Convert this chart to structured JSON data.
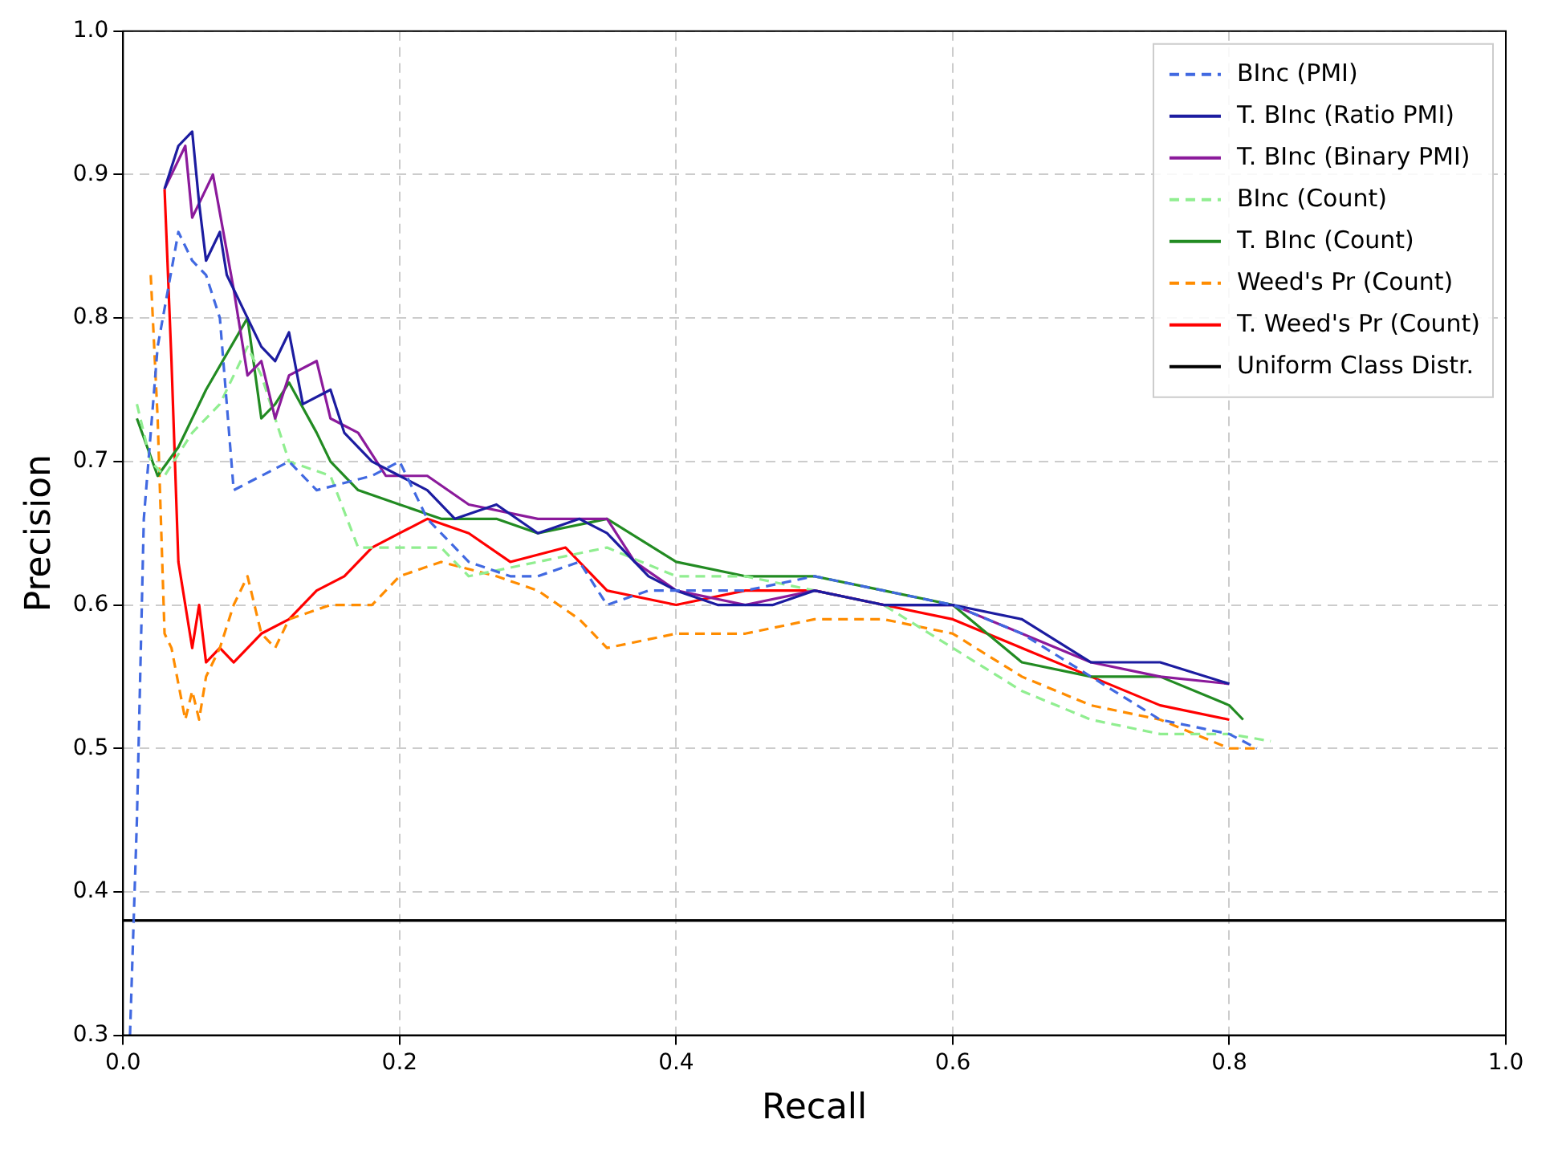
{
  "chart_data": {
    "type": "line",
    "xlabel": "Recall",
    "ylabel": "Precision",
    "xlim": [
      0,
      1
    ],
    "ylim": [
      0.3,
      1
    ],
    "xticks": [
      {
        "value": 0,
        "label": "0.0"
      },
      0.2,
      0.4,
      0.6,
      0.8,
      {
        "value": 1,
        "label": "1.0"
      }
    ],
    "yticks": [
      0.3,
      0.4,
      0.5,
      0.6,
      0.7,
      0.8,
      0.9,
      {
        "value": 1,
        "label": "1.0"
      }
    ],
    "grid": true,
    "legend": "top right",
    "marker": "none",
    "series": [
      {
        "name": "BInc (PMI)",
        "color": "#4169e1",
        "line_style": "dashed",
        "x": [
          0.005,
          0.01,
          0.015,
          0.025,
          0.04,
          0.05,
          0.06,
          0.07,
          0.08,
          0.1,
          0.12,
          0.14,
          0.18,
          0.2,
          0.22,
          0.25,
          0.28,
          0.3,
          0.33,
          0.35,
          0.38,
          0.4,
          0.45,
          0.5,
          0.55,
          0.6,
          0.65,
          0.7,
          0.75,
          0.8,
          0.82
        ],
        "values": [
          0.3,
          0.45,
          0.66,
          0.78,
          0.86,
          0.84,
          0.83,
          0.8,
          0.68,
          0.69,
          0.7,
          0.68,
          0.69,
          0.7,
          0.66,
          0.63,
          0.62,
          0.62,
          0.63,
          0.6,
          0.61,
          0.61,
          0.61,
          0.62,
          0.61,
          0.6,
          0.58,
          0.55,
          0.52,
          0.51,
          0.5
        ]
      },
      {
        "name": "T. BInc (Ratio PMI)",
        "color": "#1c1ca0",
        "line_style": "solid",
        "x": [
          0.03,
          0.04,
          0.05,
          0.055,
          0.06,
          0.07,
          0.075,
          0.09,
          0.1,
          0.11,
          0.12,
          0.13,
          0.15,
          0.16,
          0.18,
          0.2,
          0.22,
          0.24,
          0.27,
          0.3,
          0.33,
          0.35,
          0.38,
          0.4,
          0.43,
          0.47,
          0.5,
          0.55,
          0.6,
          0.65,
          0.7,
          0.75,
          0.8
        ],
        "values": [
          0.89,
          0.92,
          0.93,
          0.88,
          0.84,
          0.86,
          0.83,
          0.8,
          0.78,
          0.77,
          0.79,
          0.74,
          0.75,
          0.72,
          0.7,
          0.69,
          0.68,
          0.66,
          0.67,
          0.65,
          0.66,
          0.65,
          0.62,
          0.61,
          0.6,
          0.6,
          0.61,
          0.6,
          0.6,
          0.59,
          0.56,
          0.56,
          0.545
        ]
      },
      {
        "name": "T. BInc (Binary PMI)",
        "color": "#8b1a9b",
        "line_style": "solid",
        "x": [
          0.03,
          0.045,
          0.05,
          0.06,
          0.065,
          0.08,
          0.09,
          0.1,
          0.11,
          0.12,
          0.14,
          0.15,
          0.17,
          0.19,
          0.22,
          0.25,
          0.3,
          0.35,
          0.37,
          0.4,
          0.45,
          0.5,
          0.55,
          0.6,
          0.65,
          0.7,
          0.75,
          0.8
        ],
        "values": [
          0.89,
          0.92,
          0.87,
          0.89,
          0.9,
          0.82,
          0.76,
          0.77,
          0.73,
          0.76,
          0.77,
          0.73,
          0.72,
          0.69,
          0.69,
          0.67,
          0.66,
          0.66,
          0.63,
          0.61,
          0.6,
          0.61,
          0.6,
          0.6,
          0.58,
          0.56,
          0.55,
          0.545
        ]
      },
      {
        "name": "BInc (Count)",
        "color": "#90ee90",
        "line_style": "dashed",
        "x": [
          0.01,
          0.02,
          0.03,
          0.05,
          0.07,
          0.09,
          0.1,
          0.12,
          0.15,
          0.17,
          0.2,
          0.23,
          0.25,
          0.3,
          0.35,
          0.4,
          0.45,
          0.5,
          0.55,
          0.6,
          0.65,
          0.7,
          0.75,
          0.8,
          0.83
        ],
        "values": [
          0.74,
          0.7,
          0.69,
          0.72,
          0.74,
          0.78,
          0.76,
          0.7,
          0.69,
          0.64,
          0.64,
          0.64,
          0.62,
          0.63,
          0.64,
          0.62,
          0.62,
          0.61,
          0.6,
          0.57,
          0.54,
          0.52,
          0.51,
          0.51,
          0.505
        ]
      },
      {
        "name": "T. BInc (Count)",
        "color": "#228b22",
        "line_style": "solid",
        "x": [
          0.01,
          0.025,
          0.04,
          0.06,
          0.09,
          0.1,
          0.11,
          0.12,
          0.14,
          0.15,
          0.17,
          0.2,
          0.23,
          0.27,
          0.3,
          0.35,
          0.4,
          0.45,
          0.5,
          0.55,
          0.6,
          0.65,
          0.7,
          0.75,
          0.8,
          0.81
        ],
        "values": [
          0.73,
          0.69,
          0.71,
          0.75,
          0.8,
          0.73,
          0.74,
          0.755,
          0.72,
          0.7,
          0.68,
          0.67,
          0.66,
          0.66,
          0.65,
          0.66,
          0.63,
          0.62,
          0.62,
          0.61,
          0.6,
          0.56,
          0.55,
          0.55,
          0.53,
          0.52
        ]
      },
      {
        "name": "Weed's Pr (Count)",
        "color": "#ff8c00",
        "line_style": "dashed",
        "x": [
          0.02,
          0.025,
          0.03,
          0.035,
          0.045,
          0.05,
          0.055,
          0.06,
          0.07,
          0.08,
          0.09,
          0.1,
          0.11,
          0.12,
          0.15,
          0.18,
          0.2,
          0.23,
          0.27,
          0.3,
          0.33,
          0.35,
          0.4,
          0.45,
          0.5,
          0.55,
          0.6,
          0.65,
          0.7,
          0.75,
          0.8,
          0.82
        ],
        "values": [
          0.83,
          0.73,
          0.58,
          0.57,
          0.52,
          0.54,
          0.52,
          0.55,
          0.57,
          0.6,
          0.62,
          0.58,
          0.57,
          0.59,
          0.6,
          0.6,
          0.62,
          0.63,
          0.62,
          0.61,
          0.59,
          0.57,
          0.58,
          0.58,
          0.59,
          0.59,
          0.58,
          0.55,
          0.53,
          0.52,
          0.5,
          0.5
        ]
      },
      {
        "name": "T. Weed's Pr (Count)",
        "color": "#ff0000",
        "line_style": "solid",
        "x": [
          0.03,
          0.035,
          0.04,
          0.045,
          0.05,
          0.055,
          0.06,
          0.07,
          0.08,
          0.1,
          0.12,
          0.14,
          0.16,
          0.18,
          0.2,
          0.22,
          0.25,
          0.28,
          0.32,
          0.35,
          0.4,
          0.45,
          0.5,
          0.55,
          0.6,
          0.65,
          0.7,
          0.75,
          0.8
        ],
        "values": [
          0.89,
          0.77,
          0.63,
          0.6,
          0.57,
          0.6,
          0.56,
          0.57,
          0.56,
          0.58,
          0.59,
          0.61,
          0.62,
          0.64,
          0.65,
          0.66,
          0.65,
          0.63,
          0.64,
          0.61,
          0.6,
          0.61,
          0.61,
          0.6,
          0.59,
          0.57,
          0.55,
          0.53,
          0.52
        ]
      },
      {
        "name": "Uniform Class Distr.",
        "color": "#000000",
        "line_style": "solid",
        "x": [
          0,
          1
        ],
        "values": [
          0.38,
          0.38
        ]
      }
    ]
  }
}
